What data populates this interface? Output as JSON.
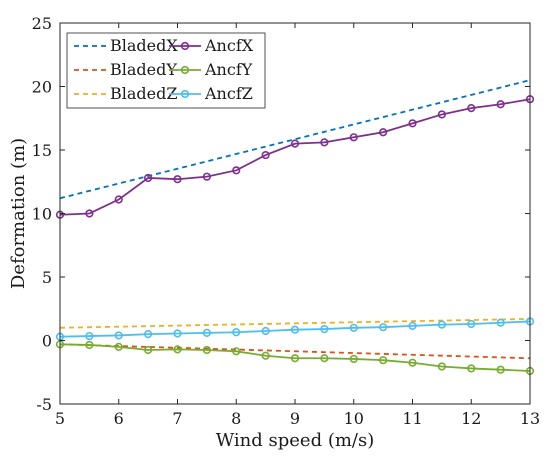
{
  "chart_data": {
    "type": "line",
    "title": "",
    "xlabel": "Wind speed (m/s)",
    "ylabel": "Deformation (m)",
    "xlim": [
      5,
      13
    ],
    "ylim": [
      -5,
      25
    ],
    "xticks": [
      5,
      6,
      7,
      8,
      9,
      10,
      11,
      12,
      13
    ],
    "yticks": [
      -5,
      0,
      5,
      10,
      15,
      20,
      25
    ],
    "xtick_labels": [
      "5",
      "6",
      "7",
      "8",
      "9",
      "10",
      "11",
      "12",
      "13"
    ],
    "ytick_labels": [
      "-5",
      "0",
      "5",
      "10",
      "15",
      "20",
      "25"
    ],
    "grid": false,
    "legend_position": "top-left",
    "series": [
      {
        "name": "BladedX",
        "color": "#0072BD",
        "style": "dashed",
        "marker": "none",
        "x": [
          5,
          13
        ],
        "y": [
          11.2,
          20.5
        ]
      },
      {
        "name": "AncfX",
        "color": "#7E2F8E",
        "style": "solid",
        "marker": "circle",
        "x": [
          5,
          5.5,
          6,
          6.5,
          7,
          7.5,
          8,
          8.5,
          9,
          9.5,
          10,
          10.5,
          11,
          11.5,
          12,
          12.5,
          13
        ],
        "y": [
          9.9,
          10.0,
          11.1,
          12.8,
          12.7,
          12.9,
          13.4,
          14.6,
          15.5,
          15.6,
          16.0,
          16.4,
          17.1,
          17.8,
          18.3,
          18.6,
          19.0
        ]
      },
      {
        "name": "BladedY",
        "color": "#D95319",
        "style": "dashed",
        "marker": "none",
        "x": [
          5,
          13
        ],
        "y": [
          -0.3,
          -1.4
        ]
      },
      {
        "name": "AncfY",
        "color": "#77AC30",
        "style": "solid",
        "marker": "circle",
        "x": [
          5,
          5.5,
          6,
          6.5,
          7,
          7.5,
          8,
          8.5,
          9,
          9.5,
          10,
          10.5,
          11,
          11.5,
          12,
          12.5,
          13
        ],
        "y": [
          -0.3,
          -0.35,
          -0.5,
          -0.75,
          -0.7,
          -0.75,
          -0.85,
          -1.2,
          -1.4,
          -1.4,
          -1.45,
          -1.55,
          -1.75,
          -2.05,
          -2.2,
          -2.3,
          -2.4
        ]
      },
      {
        "name": "BladedZ",
        "color": "#EDB120",
        "style": "dashed",
        "marker": "none",
        "x": [
          5,
          13
        ],
        "y": [
          1.0,
          1.7
        ]
      },
      {
        "name": "AncfZ",
        "color": "#4DBEEE",
        "style": "solid",
        "marker": "circle",
        "x": [
          5,
          5.5,
          6,
          6.5,
          7,
          7.5,
          8,
          8.5,
          9,
          9.5,
          10,
          10.5,
          11,
          11.5,
          12,
          12.5,
          13
        ],
        "y": [
          0.3,
          0.35,
          0.4,
          0.5,
          0.55,
          0.6,
          0.65,
          0.75,
          0.85,
          0.9,
          1.0,
          1.05,
          1.15,
          1.25,
          1.3,
          1.4,
          1.5
        ]
      }
    ]
  }
}
